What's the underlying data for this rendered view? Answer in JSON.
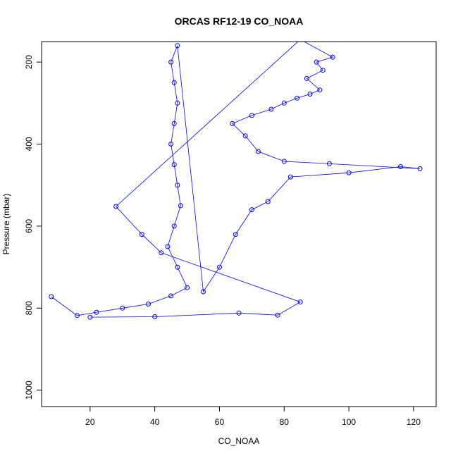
{
  "chart_data": {
    "type": "scatter",
    "title": "ORCAS RF12-19 CO_NOAA",
    "xlabel": "CO_NOAA",
    "ylabel": "Pressure (mbar)",
    "xlim": [
      5,
      127
    ],
    "ylim": [
      1040,
      150
    ],
    "y_reversed": true,
    "x_ticks": [
      20,
      40,
      60,
      80,
      100,
      120
    ],
    "y_ticks": [
      200,
      400,
      600,
      800,
      1000
    ],
    "marker": "open-circle",
    "connected_line": true,
    "grid": false,
    "legend": "none",
    "series_color": "#0000ff",
    "series": [
      {
        "profile_points": [
          [
            8,
            772
          ],
          [
            16,
            818
          ],
          [
            22,
            810
          ],
          [
            30,
            800
          ],
          [
            38,
            790
          ],
          [
            45,
            770
          ],
          [
            50,
            750
          ],
          [
            47,
            700
          ],
          [
            44,
            650
          ],
          [
            46,
            600
          ],
          [
            48,
            550
          ],
          [
            47,
            500
          ],
          [
            46,
            450
          ],
          [
            45,
            400
          ],
          [
            46,
            350
          ],
          [
            47,
            300
          ],
          [
            46,
            250
          ],
          [
            45,
            200
          ],
          [
            47,
            160
          ],
          [
            55,
            760
          ],
          [
            60,
            700
          ],
          [
            65,
            620
          ],
          [
            70,
            560
          ],
          [
            75,
            540
          ],
          [
            82,
            480
          ],
          [
            100,
            470
          ],
          [
            116,
            455
          ],
          [
            122,
            460
          ],
          [
            94,
            448
          ],
          [
            80,
            442
          ],
          [
            72,
            418
          ],
          [
            68,
            380
          ],
          [
            64,
            350
          ],
          [
            70,
            330
          ],
          [
            76,
            315
          ],
          [
            80,
            300
          ],
          [
            84,
            288
          ],
          [
            88,
            278
          ],
          [
            91,
            268
          ],
          [
            87,
            240
          ],
          [
            92,
            220
          ],
          [
            90,
            200
          ],
          [
            95,
            188
          ],
          [
            85,
            145
          ],
          [
            28,
            552
          ],
          [
            36,
            620
          ],
          [
            42,
            665
          ],
          [
            85,
            785
          ],
          [
            78,
            817
          ],
          [
            66,
            812
          ],
          [
            40,
            821
          ],
          [
            20,
            822
          ]
        ]
      }
    ]
  }
}
